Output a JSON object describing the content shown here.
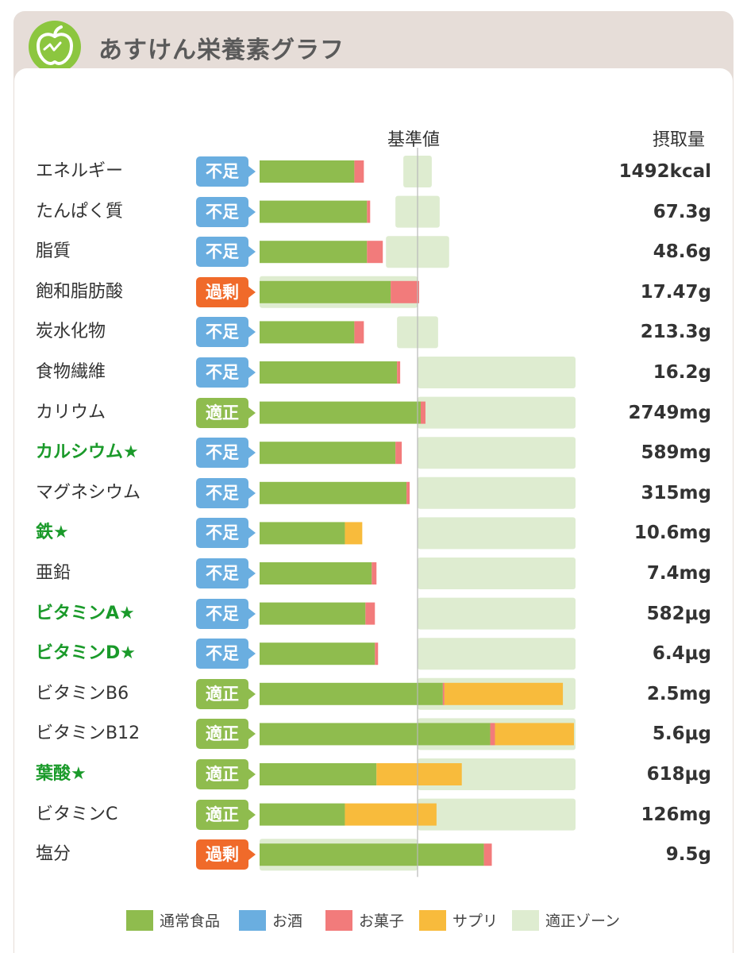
{
  "header": {
    "app_title": "あすけん栄養素グラフ",
    "logo_icon": "apple-logo-icon"
  },
  "columns": {
    "reference": "基準値",
    "intake": "摂取量"
  },
  "colors": {
    "food": "#8fbc4e",
    "alcohol": "#6aaee0",
    "snack": "#f27b7b",
    "supplement": "#f8bb3c",
    "zone": "#deecd0",
    "status_low": "#6aaee0",
    "status_ok": "#8fbc4e",
    "status_high": "#f06a2a"
  },
  "legend": [
    {
      "key": "food",
      "label": "通常食品"
    },
    {
      "key": "alcohol",
      "label": "お酒"
    },
    {
      "key": "snack",
      "label": "お菓子"
    },
    {
      "key": "supplement",
      "label": "サプリ"
    },
    {
      "key": "zone",
      "label": "適正ゾーン"
    }
  ],
  "chart_data": {
    "type": "bar",
    "orientation": "horizontal",
    "stacked": true,
    "unit_note": "percent of reference value (基準値 = 100)",
    "reference_line": 100,
    "series": [
      {
        "name": "通常食品",
        "key": "food"
      },
      {
        "name": "お酒",
        "key": "alcohol"
      },
      {
        "name": "お菓子",
        "key": "snack"
      },
      {
        "name": "サプリ",
        "key": "supplement"
      }
    ],
    "rows": [
      {
        "label": "エネルギー",
        "star": false,
        "status": "不足",
        "status_type": "low",
        "value_text": "1492kcal",
        "food": 60,
        "alcohol": 0,
        "snack": 6,
        "supplement": 0,
        "zone": [
          91,
          109
        ]
      },
      {
        "label": "たんぱく質",
        "star": false,
        "status": "不足",
        "status_type": "low",
        "value_text": "67.3g",
        "food": 68,
        "alcohol": 0,
        "snack": 2,
        "supplement": 0,
        "zone": [
          86,
          114
        ]
      },
      {
        "label": "脂質",
        "star": false,
        "status": "不足",
        "status_type": "low",
        "value_text": "48.6g",
        "food": 68,
        "alcohol": 0,
        "snack": 10,
        "supplement": 0,
        "zone": [
          80,
          120
        ]
      },
      {
        "label": "飽和脂肪酸",
        "star": false,
        "status": "過剰",
        "status_type": "high",
        "value_text": "17.47g",
        "food": 83,
        "alcohol": 0,
        "snack": 18,
        "supplement": 0,
        "zone": [
          0,
          100
        ]
      },
      {
        "label": "炭水化物",
        "star": false,
        "status": "不足",
        "status_type": "low",
        "value_text": "213.3g",
        "food": 60,
        "alcohol": 0,
        "snack": 6,
        "supplement": 0,
        "zone": [
          87,
          113
        ]
      },
      {
        "label": "食物繊維",
        "star": false,
        "status": "不足",
        "status_type": "low",
        "value_text": "16.2g",
        "food": 87,
        "alcohol": 0,
        "snack": 2,
        "supplement": 0,
        "zone": [
          100,
          200
        ]
      },
      {
        "label": "カリウム",
        "star": false,
        "status": "適正",
        "status_type": "ok",
        "value_text": "2749mg",
        "food": 102,
        "alcohol": 0,
        "snack": 3,
        "supplement": 0,
        "zone": [
          100,
          200
        ]
      },
      {
        "label": "カルシウム★",
        "star": true,
        "status": "不足",
        "status_type": "low",
        "value_text": "589mg",
        "food": 86,
        "alcohol": 0,
        "snack": 4,
        "supplement": 0,
        "zone": [
          100,
          200
        ]
      },
      {
        "label": "マグネシウム",
        "star": false,
        "status": "不足",
        "status_type": "low",
        "value_text": "315mg",
        "food": 93,
        "alcohol": 0,
        "snack": 2,
        "supplement": 0,
        "zone": [
          100,
          200
        ]
      },
      {
        "label": "鉄★",
        "star": true,
        "status": "不足",
        "status_type": "low",
        "value_text": "10.6mg",
        "food": 54,
        "alcohol": 0,
        "snack": 0,
        "supplement": 11,
        "zone": [
          100,
          200
        ]
      },
      {
        "label": "亜鉛",
        "star": false,
        "status": "不足",
        "status_type": "low",
        "value_text": "7.4mg",
        "food": 71,
        "alcohol": 0,
        "snack": 3,
        "supplement": 0,
        "zone": [
          100,
          200
        ]
      },
      {
        "label": "ビタミンA★",
        "star": true,
        "status": "不足",
        "status_type": "low",
        "value_text": "582μg",
        "food": 67,
        "alcohol": 0,
        "snack": 6,
        "supplement": 0,
        "zone": [
          100,
          200
        ]
      },
      {
        "label": "ビタミンD★",
        "star": true,
        "status": "不足",
        "status_type": "low",
        "value_text": "6.4μg",
        "food": 73,
        "alcohol": 0,
        "snack": 2,
        "supplement": 0,
        "zone": [
          100,
          200
        ]
      },
      {
        "label": "ビタミンB6",
        "star": false,
        "status": "適正",
        "status_type": "ok",
        "value_text": "2.5mg",
        "food": 116,
        "alcohol": 0,
        "snack": 1,
        "supplement": 75,
        "zone": [
          100,
          200
        ]
      },
      {
        "label": "ビタミンB12",
        "star": false,
        "status": "適正",
        "status_type": "ok",
        "value_text": "5.6μg",
        "food": 146,
        "alcohol": 0,
        "snack": 3,
        "supplement": 50,
        "zone": [
          100,
          200
        ]
      },
      {
        "label": "葉酸★",
        "star": true,
        "status": "適正",
        "status_type": "ok",
        "value_text": "618μg",
        "food": 74,
        "alcohol": 0,
        "snack": 0,
        "supplement": 54,
        "zone": [
          100,
          200
        ]
      },
      {
        "label": "ビタミンC",
        "star": false,
        "status": "適正",
        "status_type": "ok",
        "value_text": "126mg",
        "food": 54,
        "alcohol": 0,
        "snack": 0,
        "supplement": 58,
        "zone": [
          100,
          200
        ]
      },
      {
        "label": "塩分",
        "star": false,
        "status": "過剰",
        "status_type": "high",
        "value_text": "9.5g",
        "food": 142,
        "alcohol": 0,
        "snack": 5,
        "supplement": 0,
        "zone": [
          0,
          100
        ]
      }
    ]
  }
}
